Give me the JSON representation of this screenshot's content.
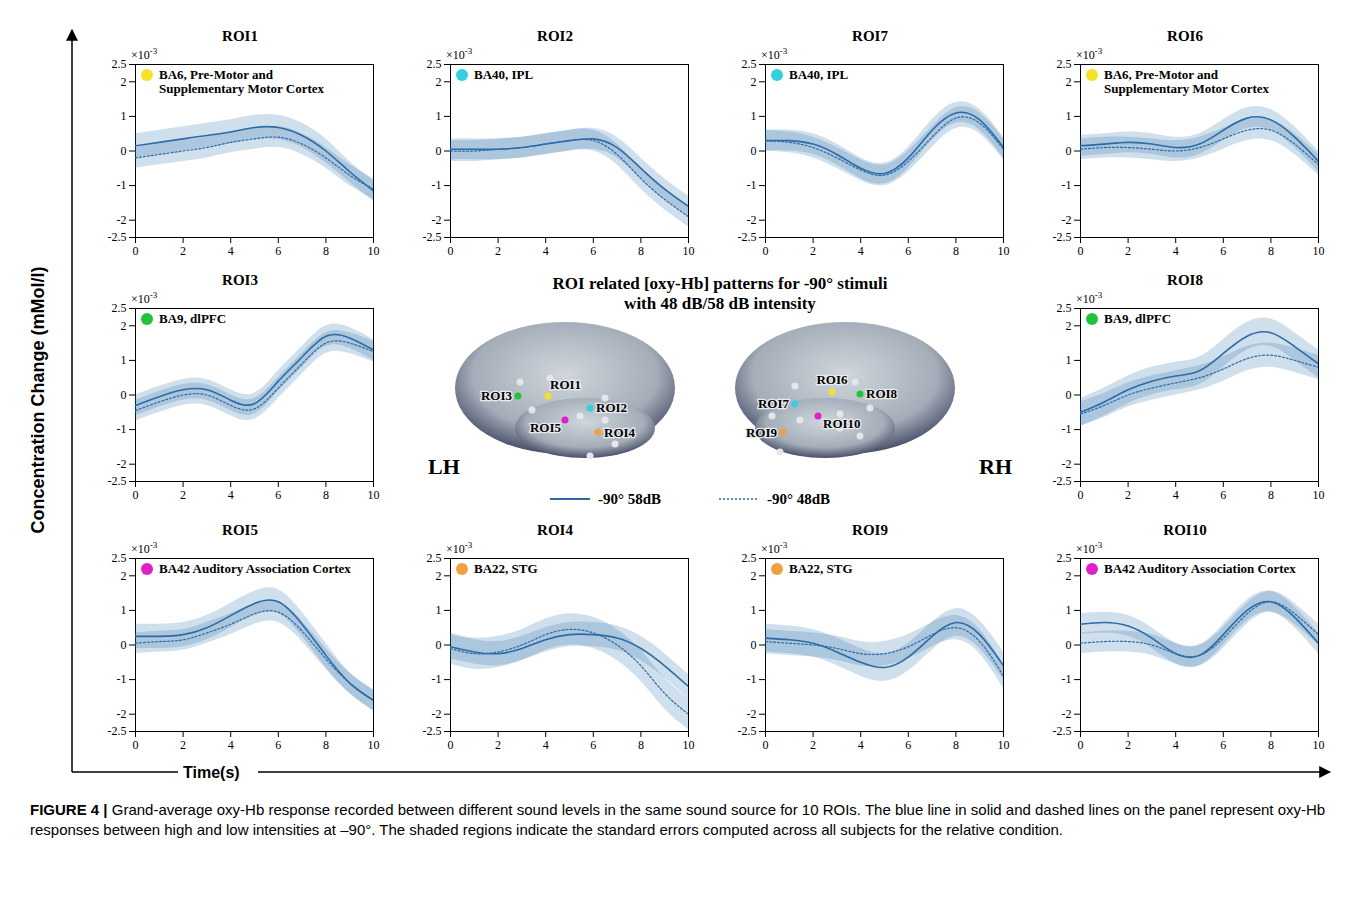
{
  "figure": {
    "center_title": [
      "ROI related [oxy-Hb] patterns for -90° stimuli",
      "with 48 dB/58 dB intensity"
    ],
    "y_label": "Concentration Change (mMol/l)",
    "x_label": "Time(s)",
    "y_scale_base": "×10",
    "y_scale_exponent": "-3",
    "hemisphere_labels": [
      "LH",
      "RH"
    ],
    "caption_label": "FIGURE 4 |",
    "caption": "Grand-average oxy-Hb response recorded between different sound levels in the same sound source for 10 ROIs. The blue line in solid and dashed lines on the panel represent oxy-Hb responses between high and low intensities at –90°. The shaded regions indicate the standard errors computed across all subjects for the relative condition."
  },
  "chart_data": [
    {
      "type": "line",
      "title": "ROI1",
      "annotation": {
        "text": "BA6, Pre-Motor and Supplementary Motor Cortex",
        "color": "#f5e12a"
      },
      "x": [
        0,
        1,
        2,
        3,
        4,
        5,
        6,
        7,
        8,
        9,
        10
      ],
      "xlim": [
        0,
        10
      ],
      "xticks": [
        0,
        2,
        4,
        6,
        8,
        10
      ],
      "ylim": [
        -2.5,
        2.5
      ],
      "yticks": [
        -2.5,
        -2,
        -1,
        0,
        1,
        2,
        2.5
      ],
      "series": [
        {
          "name": "-90° 58dB",
          "color": "#2b6ca8",
          "line_style": "solid",
          "values": [
            0.15,
            0.25,
            0.35,
            0.45,
            0.55,
            0.68,
            0.68,
            0.45,
            0,
            -0.6,
            -1.15
          ],
          "error": [
            0.35,
            0.35,
            0.35,
            0.35,
            0.35,
            0.35,
            0.35,
            0.35,
            0.35,
            0.3,
            0.3
          ]
        },
        {
          "name": "-90° 48dB",
          "color": "#2b6ca8",
          "line_style": "dotted",
          "values": [
            -0.2,
            -0.1,
            0,
            0.1,
            0.25,
            0.35,
            0.4,
            0.2,
            -0.2,
            -0.7,
            -1.1
          ],
          "error": [
            0.3,
            0.3,
            0.3,
            0.3,
            0.3,
            0.3,
            0.3,
            0.3,
            0.3,
            0.3,
            0.3
          ]
        }
      ]
    },
    {
      "type": "line",
      "title": "ROI2",
      "annotation": {
        "text": "BA40, IPL",
        "color": "#35d0e0"
      },
      "x": [
        0,
        1,
        2,
        3,
        4,
        5,
        6,
        7,
        8,
        9,
        10
      ],
      "xlim": [
        0,
        10
      ],
      "xticks": [
        0,
        2,
        4,
        6,
        8,
        10
      ],
      "ylim": [
        -2.5,
        2.5
      ],
      "yticks": [
        -2.5,
        -2,
        -1,
        0,
        1,
        2,
        2.5
      ],
      "series": [
        {
          "name": "-90° 58dB",
          "color": "#2b6ca8",
          "line_style": "solid",
          "values": [
            0.05,
            0.05,
            0.05,
            0.1,
            0.2,
            0.3,
            0.35,
            0.1,
            -0.5,
            -1.1,
            -1.6
          ],
          "error": [
            0.3,
            0.3,
            0.3,
            0.3,
            0.3,
            0.3,
            0.3,
            0.3,
            0.3,
            0.3,
            0.3
          ]
        },
        {
          "name": "-90° 48dB",
          "color": "#2b6ca8",
          "line_style": "dotted",
          "values": [
            0,
            0,
            0.05,
            0.1,
            0.2,
            0.3,
            0.3,
            -0.1,
            -0.8,
            -1.4,
            -1.9
          ],
          "error": [
            0.3,
            0.3,
            0.3,
            0.3,
            0.3,
            0.3,
            0.3,
            0.3,
            0.3,
            0.3,
            0.3
          ]
        }
      ]
    },
    {
      "type": "line",
      "title": "ROI7",
      "annotation": {
        "text": "BA40, IPL",
        "color": "#35d0e0"
      },
      "x": [
        0,
        1,
        2,
        3,
        4,
        5,
        6,
        7,
        8,
        9,
        10
      ],
      "xlim": [
        0,
        10
      ],
      "xticks": [
        0,
        2,
        4,
        6,
        8,
        10
      ],
      "ylim": [
        -2.5,
        2.5
      ],
      "yticks": [
        -2.5,
        -2,
        -1,
        0,
        1,
        2,
        2.5
      ],
      "series": [
        {
          "name": "-90° 58dB",
          "color": "#2b6ca8",
          "line_style": "solid",
          "values": [
            0.3,
            0.3,
            0.2,
            -0.1,
            -0.5,
            -0.65,
            -0.2,
            0.6,
            1.1,
            0.9,
            0.1
          ],
          "error": [
            0.3,
            0.3,
            0.3,
            0.3,
            0.3,
            0.3,
            0.3,
            0.3,
            0.3,
            0.3,
            0.3
          ]
        },
        {
          "name": "-90° 48dB",
          "color": "#2b6ca8",
          "line_style": "dotted",
          "values": [
            0.3,
            0.25,
            0.1,
            -0.2,
            -0.55,
            -0.7,
            -0.3,
            0.4,
            0.95,
            0.8,
            0.05
          ],
          "error": [
            0.3,
            0.3,
            0.3,
            0.3,
            0.3,
            0.3,
            0.3,
            0.3,
            0.3,
            0.3,
            0.3
          ]
        }
      ]
    },
    {
      "type": "line",
      "title": "ROI6",
      "annotation": {
        "text": "BA6, Pre-Motor and Supplementary Motor Cortex",
        "color": "#f5e12a"
      },
      "x": [
        0,
        1,
        2,
        3,
        4,
        5,
        6,
        7,
        8,
        9,
        10
      ],
      "xlim": [
        0,
        10
      ],
      "xticks": [
        0,
        2,
        4,
        6,
        8,
        10
      ],
      "ylim": [
        -2.5,
        2.5
      ],
      "yticks": [
        -2.5,
        -2,
        -1,
        0,
        1,
        2,
        2.5
      ],
      "series": [
        {
          "name": "-90° 58dB",
          "color": "#2b6ca8",
          "line_style": "solid",
          "values": [
            0.15,
            0.2,
            0.25,
            0.2,
            0.1,
            0.2,
            0.6,
            0.95,
            0.9,
            0.4,
            -0.3
          ],
          "error": [
            0.3,
            0.3,
            0.3,
            0.3,
            0.3,
            0.3,
            0.3,
            0.3,
            0.3,
            0.3,
            0.3
          ]
        },
        {
          "name": "-90° 48dB",
          "color": "#2b6ca8",
          "line_style": "dotted",
          "values": [
            0.05,
            0.1,
            0.1,
            0.05,
            0,
            0.1,
            0.35,
            0.6,
            0.6,
            0.2,
            -0.4
          ],
          "error": [
            0.3,
            0.3,
            0.3,
            0.3,
            0.3,
            0.3,
            0.3,
            0.3,
            0.3,
            0.3,
            0.3
          ]
        }
      ]
    },
    {
      "type": "line",
      "title": "ROI3",
      "annotation": {
        "text": "BA9, dlPFC",
        "color": "#22c33a"
      },
      "x": [
        0,
        1,
        2,
        3,
        4,
        5,
        6,
        7,
        8,
        9,
        10
      ],
      "xlim": [
        0,
        10
      ],
      "xticks": [
        0,
        2,
        4,
        6,
        8,
        10
      ],
      "ylim": [
        -2.5,
        2.5
      ],
      "yticks": [
        -2.5,
        -2,
        -1,
        0,
        1,
        2,
        2.5
      ],
      "series": [
        {
          "name": "-90° 58dB",
          "color": "#2b6ca8",
          "line_style": "solid",
          "values": [
            -0.3,
            -0.05,
            0.15,
            0.15,
            -0.15,
            -0.25,
            0.4,
            1.1,
            1.7,
            1.65,
            1.3
          ],
          "error": [
            0.3,
            0.3,
            0.3,
            0.3,
            0.3,
            0.3,
            0.3,
            0.3,
            0.3,
            0.3,
            0.3
          ]
        },
        {
          "name": "-90° 48dB",
          "color": "#2b6ca8",
          "line_style": "dotted",
          "values": [
            -0.45,
            -0.2,
            0,
            0,
            -0.3,
            -0.4,
            0.2,
            0.9,
            1.5,
            1.5,
            1.25
          ],
          "error": [
            0.3,
            0.3,
            0.3,
            0.3,
            0.3,
            0.3,
            0.3,
            0.3,
            0.3,
            0.3,
            0.3
          ]
        }
      ]
    },
    {
      "type": "line",
      "title": "ROI8",
      "annotation": {
        "text": "BA9, dlPFC",
        "color": "#22c33a"
      },
      "x": [
        0,
        1,
        2,
        3,
        4,
        5,
        6,
        7,
        8,
        9,
        10
      ],
      "xlim": [
        0,
        10
      ],
      "xticks": [
        0,
        2,
        4,
        6,
        8,
        10
      ],
      "ylim": [
        -2.5,
        2.5
      ],
      "yticks": [
        -2.5,
        -2,
        -1,
        0,
        1,
        2,
        2.5
      ],
      "series": [
        {
          "name": "-90° 58dB",
          "color": "#2b6ca8",
          "line_style": "solid",
          "values": [
            -0.5,
            -0.2,
            0.15,
            0.4,
            0.55,
            0.7,
            1.2,
            1.7,
            1.8,
            1.4,
            0.9
          ],
          "error": [
            0.4,
            0.4,
            0.4,
            0.4,
            0.4,
            0.4,
            0.4,
            0.4,
            0.4,
            0.4,
            0.4
          ]
        },
        {
          "name": "-90° 48dB",
          "color": "#2b6ca8",
          "line_style": "dotted",
          "values": [
            -0.55,
            -0.3,
            0,
            0.2,
            0.35,
            0.5,
            0.75,
            1.05,
            1.15,
            1.0,
            0.8
          ],
          "error": [
            0.35,
            0.35,
            0.35,
            0.35,
            0.35,
            0.35,
            0.35,
            0.35,
            0.35,
            0.35,
            0.35
          ]
        }
      ]
    },
    {
      "type": "line",
      "title": "ROI5",
      "annotation": {
        "text": "BA42 Auditory Association Cortex",
        "color": "#e020c8"
      },
      "x": [
        0,
        1,
        2,
        3,
        4,
        5,
        6,
        7,
        8,
        9,
        10
      ],
      "xlim": [
        0,
        10
      ],
      "xticks": [
        0,
        2,
        4,
        6,
        8,
        10
      ],
      "ylim": [
        -2.5,
        2.5
      ],
      "yticks": [
        -2.5,
        -2,
        -1,
        0,
        1,
        2,
        2.5
      ],
      "series": [
        {
          "name": "-90° 58dB",
          "color": "#2b6ca8",
          "line_style": "solid",
          "values": [
            0.25,
            0.25,
            0.3,
            0.5,
            0.85,
            1.2,
            1.25,
            0.6,
            -0.3,
            -1.1,
            -1.6
          ],
          "error": [
            0.35,
            0.35,
            0.35,
            0.35,
            0.35,
            0.35,
            0.35,
            0.35,
            0.35,
            0.3,
            0.3
          ]
        },
        {
          "name": "-90° 48dB",
          "color": "#2b6ca8",
          "line_style": "dotted",
          "values": [
            0.05,
            0.1,
            0.15,
            0.35,
            0.6,
            0.9,
            0.95,
            0.4,
            -0.4,
            -1.1,
            -1.6
          ],
          "error": [
            0.3,
            0.3,
            0.3,
            0.3,
            0.3,
            0.3,
            0.3,
            0.3,
            0.3,
            0.3,
            0.3
          ]
        }
      ]
    },
    {
      "type": "line",
      "title": "ROI4",
      "annotation": {
        "text": "BA22, STG",
        "color": "#f0a040"
      },
      "x": [
        0,
        1,
        2,
        3,
        4,
        5,
        6,
        7,
        8,
        9,
        10
      ],
      "xlim": [
        0,
        10
      ],
      "xticks": [
        0,
        2,
        4,
        6,
        8,
        10
      ],
      "ylim": [
        -2.5,
        2.5
      ],
      "yticks": [
        -2.5,
        -2,
        -1,
        0,
        1,
        2,
        2.5
      ],
      "series": [
        {
          "name": "-90° 58dB",
          "color": "#2b6ca8",
          "line_style": "solid",
          "values": [
            -0.05,
            -0.2,
            -0.25,
            -0.1,
            0.15,
            0.3,
            0.3,
            0.2,
            -0.1,
            -0.6,
            -1.2
          ],
          "error": [
            0.35,
            0.35,
            0.35,
            0.35,
            0.35,
            0.35,
            0.35,
            0.35,
            0.35,
            0.35,
            0.35
          ]
        },
        {
          "name": "-90° 48dB",
          "color": "#2b6ca8",
          "line_style": "dotted",
          "values": [
            -0.1,
            -0.25,
            -0.2,
            0,
            0.3,
            0.45,
            0.35,
            0,
            -0.6,
            -1.4,
            -2.0
          ],
          "error": [
            0.45,
            0.45,
            0.45,
            0.45,
            0.45,
            0.45,
            0.45,
            0.45,
            0.45,
            0.45,
            0.45
          ]
        }
      ]
    },
    {
      "type": "line",
      "title": "ROI9",
      "annotation": {
        "text": "BA22, STG",
        "color": "#f0a040"
      },
      "x": [
        0,
        1,
        2,
        3,
        4,
        5,
        6,
        7,
        8,
        9,
        10
      ],
      "xlim": [
        0,
        10
      ],
      "xticks": [
        0,
        2,
        4,
        6,
        8,
        10
      ],
      "ylim": [
        -2.5,
        2.5
      ],
      "yticks": [
        -2.5,
        -2,
        -1,
        0,
        1,
        2,
        2.5
      ],
      "series": [
        {
          "name": "-90° 58dB",
          "color": "#2b6ca8",
          "line_style": "solid",
          "values": [
            0.2,
            0.15,
            0.05,
            -0.2,
            -0.5,
            -0.65,
            -0.35,
            0.25,
            0.65,
            0.3,
            -0.6
          ],
          "error": [
            0.4,
            0.4,
            0.4,
            0.4,
            0.4,
            0.4,
            0.4,
            0.4,
            0.4,
            0.4,
            0.4
          ]
        },
        {
          "name": "-90° 48dB",
          "color": "#2b6ca8",
          "line_style": "dotted",
          "values": [
            0.1,
            0.05,
            0,
            -0.1,
            -0.25,
            -0.25,
            -0.05,
            0.3,
            0.5,
            0.1,
            -0.9
          ],
          "error": [
            0.35,
            0.35,
            0.35,
            0.35,
            0.35,
            0.35,
            0.35,
            0.35,
            0.35,
            0.35,
            0.35
          ]
        }
      ]
    },
    {
      "type": "line",
      "title": "ROI10",
      "annotation": {
        "text": "BA42 Auditory Association Cortex",
        "color": "#e020c8"
      },
      "x": [
        0,
        1,
        2,
        3,
        4,
        5,
        6,
        7,
        8,
        9,
        10
      ],
      "xlim": [
        0,
        10
      ],
      "xticks": [
        0,
        2,
        4,
        6,
        8,
        10
      ],
      "ylim": [
        -2.5,
        2.5
      ],
      "yticks": [
        -2.5,
        -2,
        -1,
        0,
        1,
        2,
        2.5
      ],
      "series": [
        {
          "name": "-90° 58dB",
          "color": "#2b6ca8",
          "line_style": "solid",
          "values": [
            0.6,
            0.65,
            0.55,
            0.2,
            -0.25,
            -0.3,
            0.3,
            1.0,
            1.25,
            0.8,
            0.05
          ],
          "error": [
            0.3,
            0.3,
            0.3,
            0.3,
            0.3,
            0.3,
            0.3,
            0.3,
            0.3,
            0.3,
            0.3
          ]
        },
        {
          "name": "-90° 48dB",
          "color": "#2b6ca8",
          "line_style": "dotted",
          "values": [
            0.05,
            0.1,
            0.1,
            0,
            -0.25,
            -0.3,
            0.2,
            0.9,
            1.25,
            0.9,
            0.3
          ],
          "error": [
            0.3,
            0.3,
            0.3,
            0.3,
            0.3,
            0.3,
            0.3,
            0.3,
            0.3,
            0.3,
            0.3
          ]
        }
      ]
    }
  ]
}
